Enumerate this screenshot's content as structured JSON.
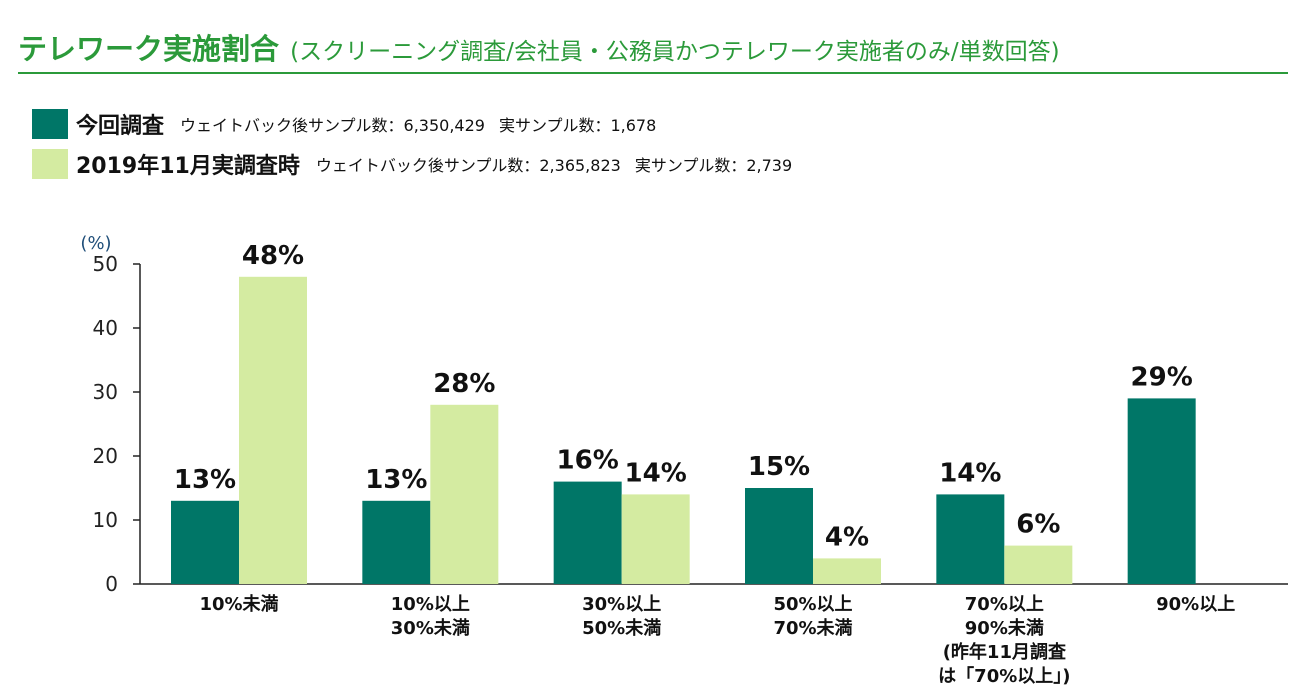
{
  "header": {
    "title": "テレワーク実施割合",
    "subtitle": "(スクリーニング調査/会社員・公務員かつテレワーク実施者のみ/単数回答)"
  },
  "legend": [
    {
      "name": "今回調査",
      "weighted": "ウェイトバック後サンプル数：6,350,429",
      "actual": "実サンプル数：1,678"
    },
    {
      "name": "2019年11月実調査時",
      "weighted": "ウェイトバック後サンプル数：2,365,823",
      "actual": "実サンプル数：2,739"
    }
  ],
  "colors": {
    "current": "#007667",
    "previous": "#d4eba1",
    "accent": "#2b9a3a"
  },
  "chart_data": {
    "type": "bar",
    "ylabel": "(%)",
    "ylim": [
      0,
      50
    ],
    "yticks": [
      0,
      10,
      20,
      30,
      40,
      50
    ],
    "grid": false,
    "categories": [
      [
        "10%未満"
      ],
      [
        "10%以上",
        "30%未満"
      ],
      [
        "30%以上",
        "50%未満"
      ],
      [
        "50%以上",
        "70%未満"
      ],
      [
        "70%以上",
        "90%未満",
        "(昨年11月調査",
        "は「70%以上」)"
      ],
      [
        "90%以上"
      ]
    ],
    "series": [
      {
        "name": "今回調査",
        "values": [
          13,
          13,
          16,
          15,
          14,
          29
        ],
        "labels": [
          "13%",
          "13%",
          "16%",
          "15%",
          "14%",
          "29%"
        ]
      },
      {
        "name": "2019年11月実調査時",
        "values": [
          48,
          28,
          14,
          4,
          6,
          null
        ],
        "labels": [
          "48%",
          "28%",
          "14%",
          "4%",
          "6%",
          null
        ]
      }
    ]
  }
}
